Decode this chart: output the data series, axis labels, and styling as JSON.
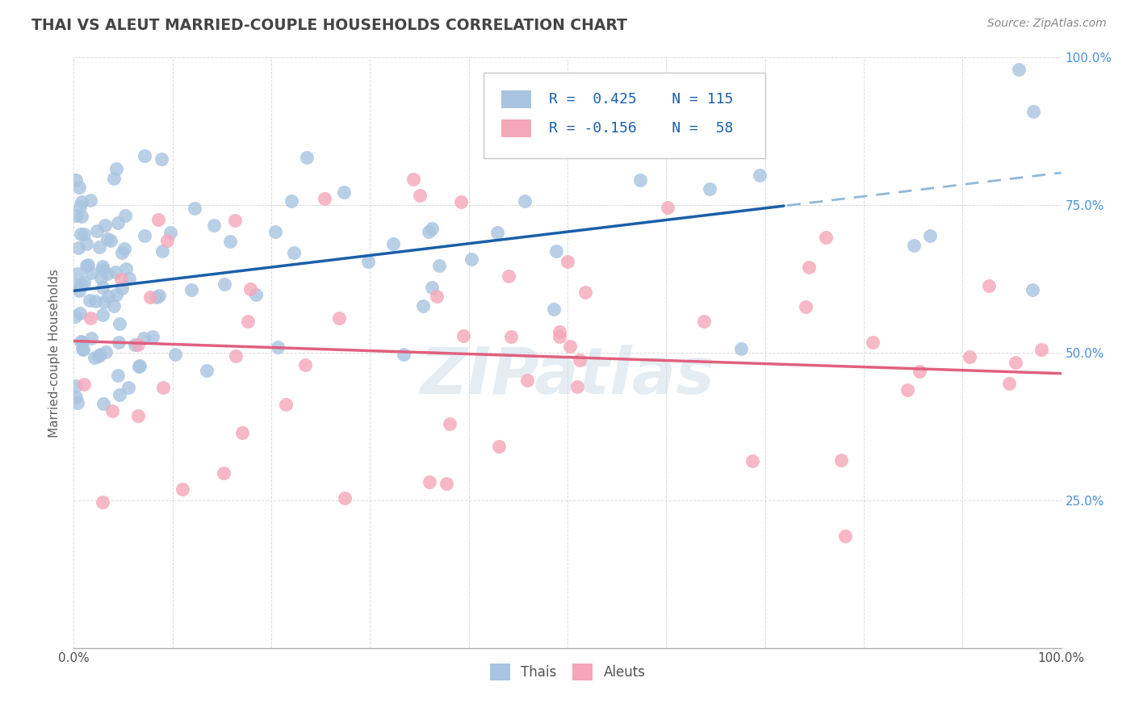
{
  "title": "THAI VS ALEUT MARRIED-COUPLE HOUSEHOLDS CORRELATION CHART",
  "source": "Source: ZipAtlas.com",
  "ylabel": "Married-couple Households",
  "thai_color": "#a8c4e0",
  "aleut_color": "#f4a7b9",
  "trend_thai_color": "#1a5fa8",
  "trend_aleut_color": "#e06080",
  "trend_thai_dashed_color": "#90b8d8",
  "R_thai": 0.425,
  "N_thai": 115,
  "R_aleut": -0.156,
  "N_aleut": 58,
  "watermark": "ZIPatlas",
  "background_color": "#ffffff",
  "grid_color": "#d8d8d8",
  "title_color": "#444444",
  "axis_label_color": "#606060",
  "tick_color_right": "#4a90d9",
  "legend_text_color": "#1a5fa8"
}
